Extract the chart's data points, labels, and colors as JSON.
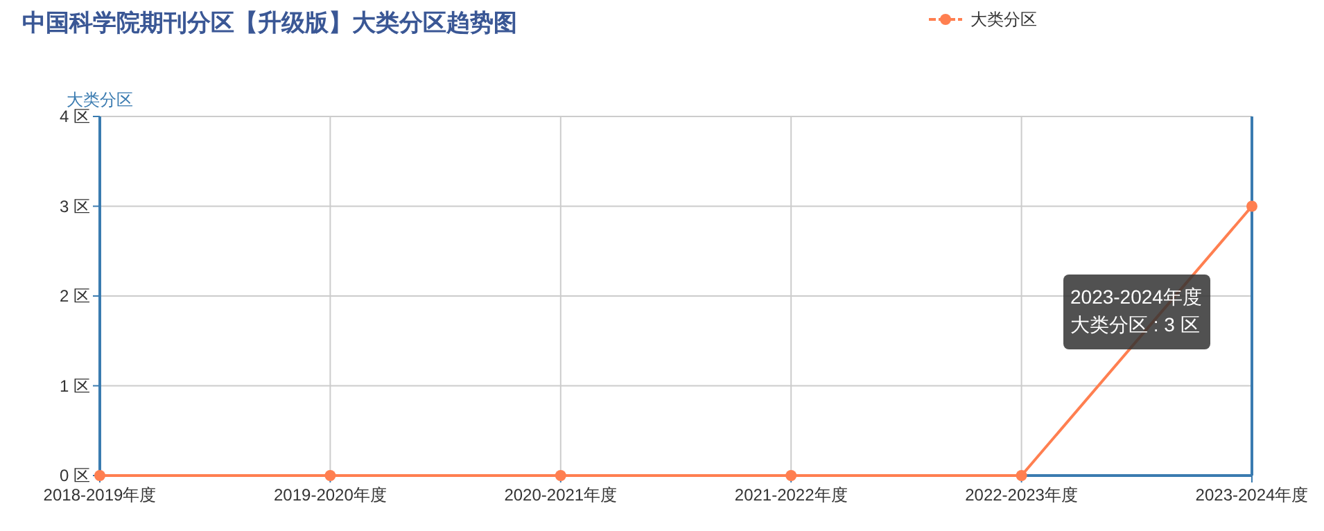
{
  "chart_data": {
    "type": "line",
    "title": "中国科学院期刊分区【升级版】大类分区趋势图",
    "ylabel": "大类分区",
    "categories": [
      "2018-2019年度",
      "2019-2020年度",
      "2020-2021年度",
      "2021-2022年度",
      "2022-2023年度",
      "2023-2024年度"
    ],
    "series": [
      {
        "name": "大类分区",
        "color": "#ff7f50",
        "values": [
          0,
          0,
          0,
          0,
          0,
          3
        ]
      }
    ],
    "ylim": [
      0,
      4
    ],
    "yticks": [
      {
        "value": 0,
        "label": "0 区"
      },
      {
        "value": 1,
        "label": "1 区"
      },
      {
        "value": 2,
        "label": "2 区"
      },
      {
        "value": 3,
        "label": "3 区"
      },
      {
        "value": 4,
        "label": "4 区"
      }
    ],
    "grid": true,
    "legend": "top right",
    "marker": "circle",
    "annotations": [
      "2023-2024年度",
      "大类分区 : 3 区"
    ]
  }
}
